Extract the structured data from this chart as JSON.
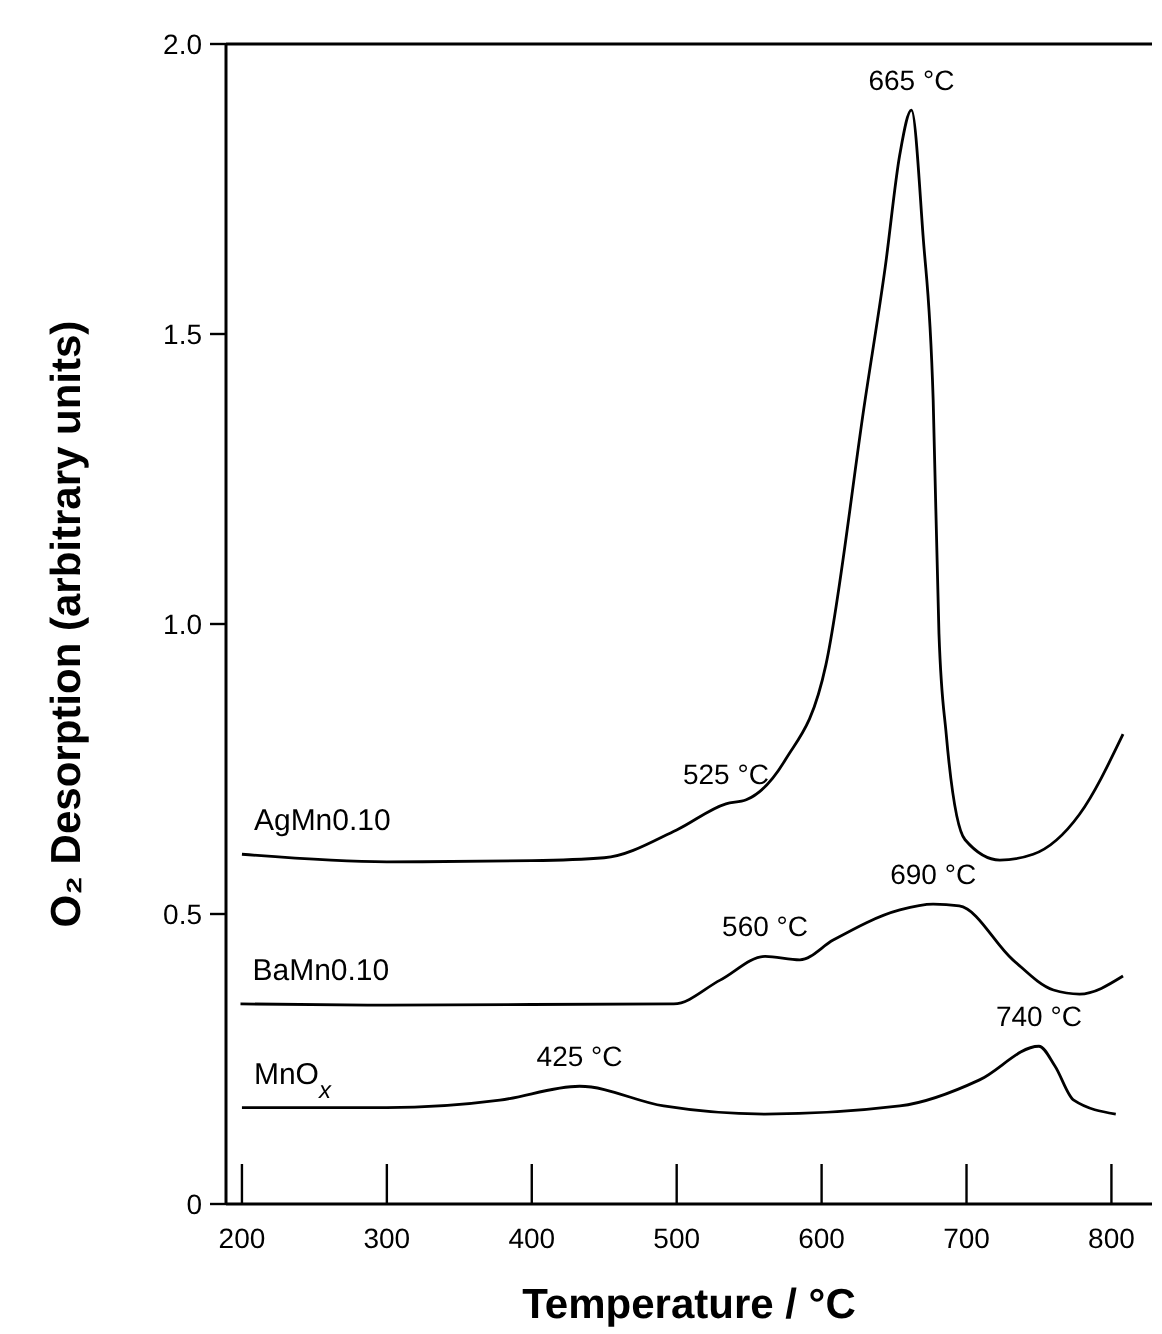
{
  "chart_data": {
    "type": "line",
    "xlabel": "Temperature / °C",
    "ylabel": "O₂ Desorption (arbitrary units)",
    "xlim": [
      189,
      828
    ],
    "ylim": [
      0,
      2
    ],
    "xticks": [
      200,
      300,
      400,
      500,
      600,
      700,
      800
    ],
    "yticks": [
      0,
      0.5,
      {
        "value": 1,
        "label": "1.0"
      },
      1.5,
      {
        "value": 2,
        "label": "2.0"
      }
    ],
    "grid": false,
    "marker": "none",
    "line_style": "solid",
    "series": [
      {
        "name": "AgMn0.10",
        "color": "#000000",
        "x": [
          200,
          300,
          400,
          450,
          500,
          534,
          548,
          575,
          603,
          630,
          644,
          654,
          662,
          670,
          677,
          681,
          686,
          699,
          723,
          746,
          778,
          808
        ],
        "values": [
          0.603,
          0.59,
          0.592,
          0.597,
          0.645,
          0.69,
          0.697,
          0.766,
          0.93,
          1.386,
          1.617,
          1.81,
          1.886,
          1.67,
          1.386,
          0.983,
          0.81,
          0.628,
          0.593,
          0.603,
          0.672,
          0.81
        ]
      },
      {
        "name": "BaMn0.10",
        "color": "#000000",
        "x": [
          199,
          300,
          400,
          498,
          530,
          561,
          585,
          608,
          654,
          677,
          695,
          732,
          760,
          778,
          808
        ],
        "values": [
          0.345,
          0.343,
          0.344,
          0.345,
          0.386,
          0.427,
          0.421,
          0.455,
          0.507,
          0.517,
          0.514,
          0.421,
          0.369,
          0.362,
          0.393
        ]
      },
      {
        "name": "MnO$_{x}$",
        "color": "#000000",
        "x": [
          200,
          300,
          378,
          433,
          491,
          561,
          654,
          709,
          750,
          761,
          774,
          803
        ],
        "values": [
          0.166,
          0.166,
          0.179,
          0.203,
          0.169,
          0.155,
          0.169,
          0.214,
          0.272,
          0.238,
          0.179,
          0.155
        ]
      }
    ],
    "annotations": [
      {
        "text": "665 °C",
        "x": 662,
        "y": 1.886
      },
      {
        "text": "525 °C",
        "x": 534,
        "y": 0.69
      },
      {
        "text": "690 °C",
        "x": 677,
        "y": 0.517
      },
      {
        "text": "560 °C",
        "x": 561,
        "y": 0.427
      },
      {
        "text": "425 °C",
        "x": 433,
        "y": 0.203
      },
      {
        "text": "740 °C",
        "x": 750,
        "y": 0.272
      }
    ]
  }
}
